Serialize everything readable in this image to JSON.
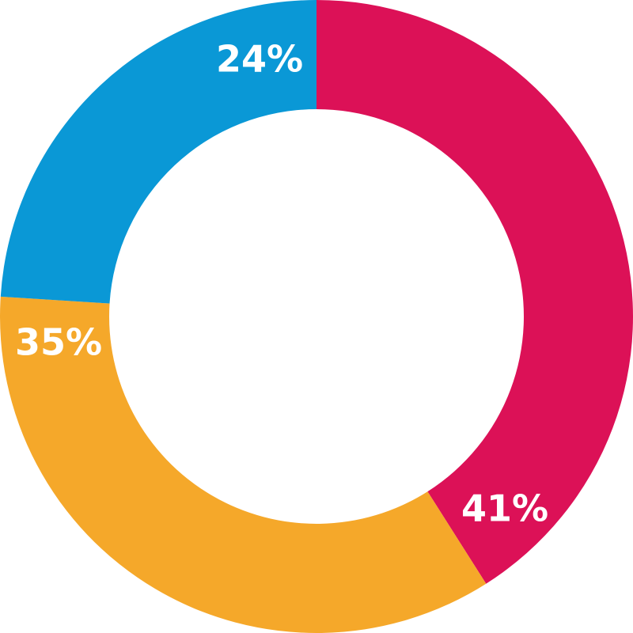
{
  "chart_data": {
    "type": "pie",
    "style": "donut",
    "start_angle_deg": 0,
    "direction": "clockwise",
    "slices": [
      {
        "label": "41%",
        "value": 41,
        "color": "#DC1157"
      },
      {
        "label": "35%",
        "value": 35,
        "color": "#F5A82A"
      },
      {
        "label": "24%",
        "value": 24,
        "color": "#0A98D6"
      }
    ],
    "background": "#ffffff",
    "label_color": "#ffffff"
  }
}
